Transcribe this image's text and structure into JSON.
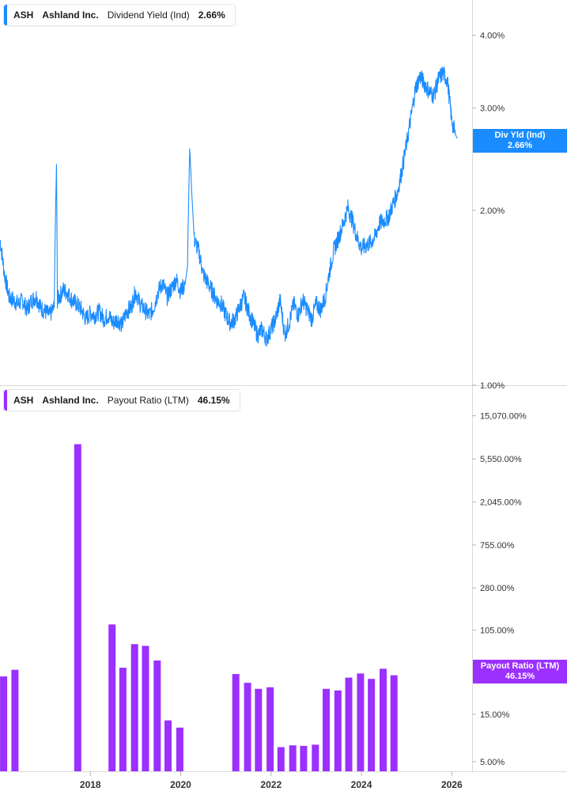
{
  "colors": {
    "yield": "#1a8cff",
    "payout": "#9b30ff",
    "axis": "#d9d9d9",
    "grid": "#e9e9e9",
    "text": "#333333"
  },
  "top_legend": {
    "ticker": "ASH",
    "company": "Ashland Inc.",
    "metric": "Dividend Yield (Ind)",
    "value": "2.66%"
  },
  "bottom_legend": {
    "ticker": "ASH",
    "company": "Ashland Inc.",
    "metric": "Payout Ratio (LTM)",
    "value": "46.15%"
  },
  "top_tag": {
    "label": "Div Yld (Ind)",
    "value": "2.66%"
  },
  "bottom_tag": {
    "label": "Payout Ratio (LTM)",
    "value": "46.15%"
  },
  "x_axis": {
    "ticks": [
      {
        "label": "2018",
        "year": 2018
      },
      {
        "label": "2020",
        "year": 2020
      },
      {
        "label": "2022",
        "year": 2022
      },
      {
        "label": "2024",
        "year": 2024
      },
      {
        "label": "2026",
        "year": 2026
      }
    ],
    "range": [
      2016.0,
      2026.45
    ]
  },
  "chart_data": [
    {
      "type": "line",
      "title": "",
      "series": [
        {
          "name": "Dividend Yield (Ind)"
        }
      ],
      "y_scale": "log",
      "ylim": [
        1.0,
        4.6
      ],
      "y_ticks": [
        {
          "label": "4.00%",
          "value": 4.0
        },
        {
          "label": "3.00%",
          "value": 3.0
        },
        {
          "label": "2.00%",
          "value": 2.0
        },
        {
          "label": "1.00%",
          "value": 1.0
        }
      ],
      "points": [
        [
          2016.0,
          1.78
        ],
        [
          2016.1,
          1.55
        ],
        [
          2016.2,
          1.42
        ],
        [
          2016.3,
          1.4
        ],
        [
          2016.4,
          1.38
        ],
        [
          2016.5,
          1.4
        ],
        [
          2016.6,
          1.35
        ],
        [
          2016.7,
          1.4
        ],
        [
          2016.8,
          1.42
        ],
        [
          2016.9,
          1.36
        ],
        [
          2017.0,
          1.34
        ],
        [
          2017.1,
          1.32
        ],
        [
          2017.2,
          1.36
        ],
        [
          2017.25,
          2.4
        ],
        [
          2017.27,
          1.4
        ],
        [
          2017.4,
          1.46
        ],
        [
          2017.5,
          1.44
        ],
        [
          2017.6,
          1.4
        ],
        [
          2017.7,
          1.38
        ],
        [
          2017.8,
          1.35
        ],
        [
          2017.9,
          1.3
        ],
        [
          2018.0,
          1.33
        ],
        [
          2018.1,
          1.32
        ],
        [
          2018.2,
          1.34
        ],
        [
          2018.3,
          1.3
        ],
        [
          2018.4,
          1.32
        ],
        [
          2018.5,
          1.28
        ],
        [
          2018.6,
          1.3
        ],
        [
          2018.7,
          1.27
        ],
        [
          2018.8,
          1.34
        ],
        [
          2018.9,
          1.36
        ],
        [
          2019.0,
          1.45
        ],
        [
          2019.1,
          1.38
        ],
        [
          2019.2,
          1.35
        ],
        [
          2019.3,
          1.32
        ],
        [
          2019.4,
          1.36
        ],
        [
          2019.5,
          1.45
        ],
        [
          2019.6,
          1.5
        ],
        [
          2019.7,
          1.42
        ],
        [
          2019.8,
          1.47
        ],
        [
          2019.9,
          1.52
        ],
        [
          2020.0,
          1.45
        ],
        [
          2020.1,
          1.5
        ],
        [
          2020.15,
          1.6
        ],
        [
          2020.2,
          2.55
        ],
        [
          2020.25,
          2.1
        ],
        [
          2020.3,
          1.78
        ],
        [
          2020.4,
          1.7
        ],
        [
          2020.5,
          1.55
        ],
        [
          2020.6,
          1.5
        ],
        [
          2020.7,
          1.45
        ],
        [
          2020.8,
          1.4
        ],
        [
          2020.9,
          1.38
        ],
        [
          2021.0,
          1.32
        ],
        [
          2021.1,
          1.28
        ],
        [
          2021.2,
          1.3
        ],
        [
          2021.3,
          1.36
        ],
        [
          2021.4,
          1.42
        ],
        [
          2021.5,
          1.34
        ],
        [
          2021.6,
          1.28
        ],
        [
          2021.7,
          1.22
        ],
        [
          2021.8,
          1.25
        ],
        [
          2021.9,
          1.2
        ],
        [
          2022.0,
          1.25
        ],
        [
          2022.1,
          1.3
        ],
        [
          2022.2,
          1.4
        ],
        [
          2022.3,
          1.22
        ],
        [
          2022.4,
          1.28
        ],
        [
          2022.5,
          1.38
        ],
        [
          2022.6,
          1.32
        ],
        [
          2022.7,
          1.4
        ],
        [
          2022.8,
          1.35
        ],
        [
          2022.9,
          1.3
        ],
        [
          2023.0,
          1.38
        ],
        [
          2023.1,
          1.35
        ],
        [
          2023.2,
          1.42
        ],
        [
          2023.3,
          1.58
        ],
        [
          2023.4,
          1.72
        ],
        [
          2023.5,
          1.8
        ],
        [
          2023.6,
          1.9
        ],
        [
          2023.7,
          2.02
        ],
        [
          2023.8,
          1.92
        ],
        [
          2023.9,
          1.8
        ],
        [
          2024.0,
          1.72
        ],
        [
          2024.1,
          1.74
        ],
        [
          2024.2,
          1.76
        ],
        [
          2024.3,
          1.8
        ],
        [
          2024.4,
          1.9
        ],
        [
          2024.5,
          1.92
        ],
        [
          2024.6,
          1.95
        ],
        [
          2024.7,
          2.05
        ],
        [
          2024.8,
          2.15
        ],
        [
          2024.9,
          2.35
        ],
        [
          2025.0,
          2.6
        ],
        [
          2025.1,
          2.9
        ],
        [
          2025.2,
          3.25
        ],
        [
          2025.3,
          3.4
        ],
        [
          2025.4,
          3.3
        ],
        [
          2025.5,
          3.2
        ],
        [
          2025.6,
          3.15
        ],
        [
          2025.7,
          3.35
        ],
        [
          2025.8,
          3.45
        ],
        [
          2025.9,
          3.35
        ],
        [
          2026.0,
          2.85
        ],
        [
          2026.08,
          2.7
        ],
        [
          2026.12,
          2.66
        ]
      ]
    },
    {
      "type": "bar",
      "title": "",
      "series": [
        {
          "name": "Payout Ratio (LTM)"
        }
      ],
      "y_scale": "log",
      "ylim": [
        4.0,
        30000
      ],
      "y_ticks": [
        {
          "label": "15,070.00%",
          "value": 15070
        },
        {
          "label": "5,550.00%",
          "value": 5550
        },
        {
          "label": "2,045.00%",
          "value": 2045
        },
        {
          "label": "755.00%",
          "value": 755
        },
        {
          "label": "280.00%",
          "value": 280
        },
        {
          "label": "105.00%",
          "value": 105
        },
        {
          "label": "15.00%",
          "value": 15
        },
        {
          "label": "5.00%",
          "value": 5
        }
      ],
      "bars": [
        {
          "x": 2016.08,
          "value": 36
        },
        {
          "x": 2016.33,
          "value": 42
        },
        {
          "x": 2017.72,
          "value": 7800
        },
        {
          "x": 2018.48,
          "value": 120
        },
        {
          "x": 2018.72,
          "value": 44
        },
        {
          "x": 2018.98,
          "value": 76
        },
        {
          "x": 2019.22,
          "value": 73
        },
        {
          "x": 2019.48,
          "value": 52
        },
        {
          "x": 2019.72,
          "value": 13
        },
        {
          "x": 2019.98,
          "value": 11
        },
        {
          "x": 2021.22,
          "value": 38
        },
        {
          "x": 2021.48,
          "value": 31
        },
        {
          "x": 2021.72,
          "value": 27
        },
        {
          "x": 2021.98,
          "value": 28
        },
        {
          "x": 2022.22,
          "value": 7
        },
        {
          "x": 2022.48,
          "value": 7.3
        },
        {
          "x": 2022.72,
          "value": 7.2
        },
        {
          "x": 2022.98,
          "value": 7.4
        },
        {
          "x": 2023.22,
          "value": 27
        },
        {
          "x": 2023.48,
          "value": 26
        },
        {
          "x": 2023.72,
          "value": 35
        },
        {
          "x": 2023.98,
          "value": 38.5
        },
        {
          "x": 2024.22,
          "value": 34
        },
        {
          "x": 2024.48,
          "value": 43
        },
        {
          "x": 2024.72,
          "value": 37
        }
      ]
    }
  ]
}
